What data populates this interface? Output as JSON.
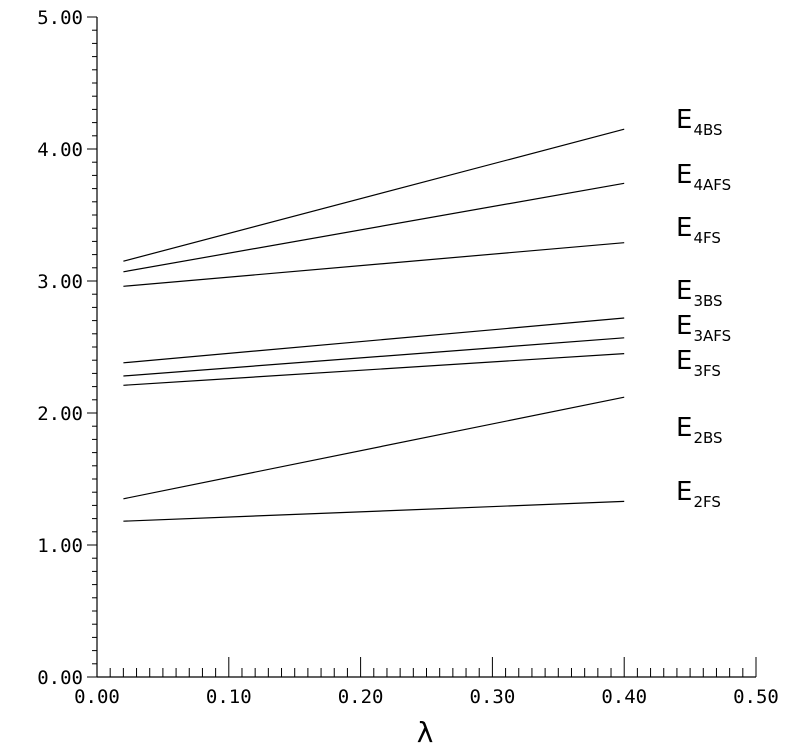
{
  "chart_data": {
    "type": "line",
    "title": "",
    "xlabel": "λ",
    "ylabel": "",
    "xlim": [
      0.0,
      0.5
    ],
    "ylim": [
      0.0,
      5.0
    ],
    "grid": false,
    "x_ticks": [
      "0.00",
      "0.10",
      "0.20",
      "0.30",
      "0.40",
      "0.50"
    ],
    "y_ticks": [
      "0.00",
      "1.00",
      "2.00",
      "3.00",
      "4.00",
      "5.00"
    ],
    "x_tick_values": [
      0.0,
      0.1,
      0.2,
      0.3,
      0.4,
      0.5
    ],
    "y_tick_values": [
      0.0,
      1.0,
      2.0,
      3.0,
      4.0,
      5.0
    ],
    "x": [
      0.02,
      0.4
    ],
    "series": [
      {
        "name": "E4BS",
        "main": "E",
        "sub": "4BS",
        "values": [
          3.15,
          4.15
        ]
      },
      {
        "name": "E4AFS",
        "main": "E",
        "sub": "4AFS",
        "values": [
          3.07,
          3.74
        ]
      },
      {
        "name": "E4FS",
        "main": "E",
        "sub": "4FS",
        "values": [
          2.96,
          3.29
        ]
      },
      {
        "name": "E3BS",
        "main": "E",
        "sub": "3BS",
        "values": [
          2.38,
          2.72
        ]
      },
      {
        "name": "E3AFS",
        "main": "E",
        "sub": "3AFS",
        "values": [
          2.28,
          2.57
        ]
      },
      {
        "name": "E3FS",
        "main": "E",
        "sub": "3FS",
        "values": [
          2.21,
          2.45
        ]
      },
      {
        "name": "E2BS",
        "main": "E",
        "sub": "2BS",
        "values": [
          1.35,
          2.12
        ]
      },
      {
        "name": "E2FS",
        "main": "E",
        "sub": "2FS",
        "values": [
          1.18,
          1.33
        ]
      }
    ]
  }
}
